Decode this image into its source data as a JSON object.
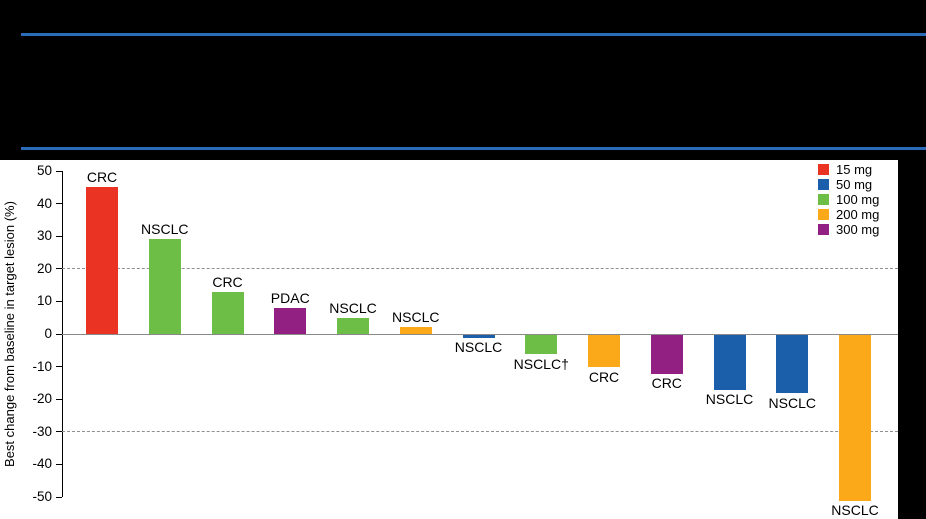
{
  "page": {
    "background": "#000000",
    "divider_color": "#2B6CB8"
  },
  "legend": {
    "position": "top-right",
    "items": [
      {
        "label": "15 mg",
        "color": "#EA3323"
      },
      {
        "label": "50 mg",
        "color": "#1B5FAA"
      },
      {
        "label": "100 mg",
        "color": "#6CBE46"
      },
      {
        "label": "200 mg",
        "color": "#FBA919"
      },
      {
        "label": "300 mg",
        "color": "#922082"
      }
    ]
  },
  "chart_data": {
    "type": "bar",
    "subtype": "waterfall",
    "title": "",
    "xlabel": "",
    "ylabel": "Best change from baseline in target lesion (%)",
    "ylim": [
      -50,
      50
    ],
    "yticks": [
      50,
      40,
      30,
      20,
      10,
      0,
      -10,
      -20,
      -30,
      -40,
      -50
    ],
    "dashed_gridlines_at": [
      20,
      -30
    ],
    "zero_line": true,
    "grid": "dashed-reference-lines-only",
    "legend_position": "top-right",
    "bars": [
      {
        "label": "CRC",
        "dose": "15 mg",
        "value": 45
      },
      {
        "label": "NSCLC",
        "dose": "100 mg",
        "value": 29
      },
      {
        "label": "CRC",
        "dose": "100 mg",
        "value": 13
      },
      {
        "label": "PDAC",
        "dose": "300 mg",
        "value": 8
      },
      {
        "label": "NSCLC",
        "dose": "100 mg",
        "value": 5
      },
      {
        "label": "NSCLC",
        "dose": "200 mg",
        "value": 2
      },
      {
        "label": "NSCLC",
        "dose": "50 mg",
        "value": -1
      },
      {
        "label": "NSCLC†",
        "dose": "100 mg",
        "value": -6
      },
      {
        "label": "CRC",
        "dose": "200 mg",
        "value": -10
      },
      {
        "label": "CRC",
        "dose": "300 mg",
        "value": -12
      },
      {
        "label": "NSCLC",
        "dose": "50 mg",
        "value": -17
      },
      {
        "label": "NSCLC",
        "dose": "50 mg",
        "value": -18
      },
      {
        "label": "NSCLC",
        "dose": "200 mg",
        "value": -51
      }
    ]
  }
}
